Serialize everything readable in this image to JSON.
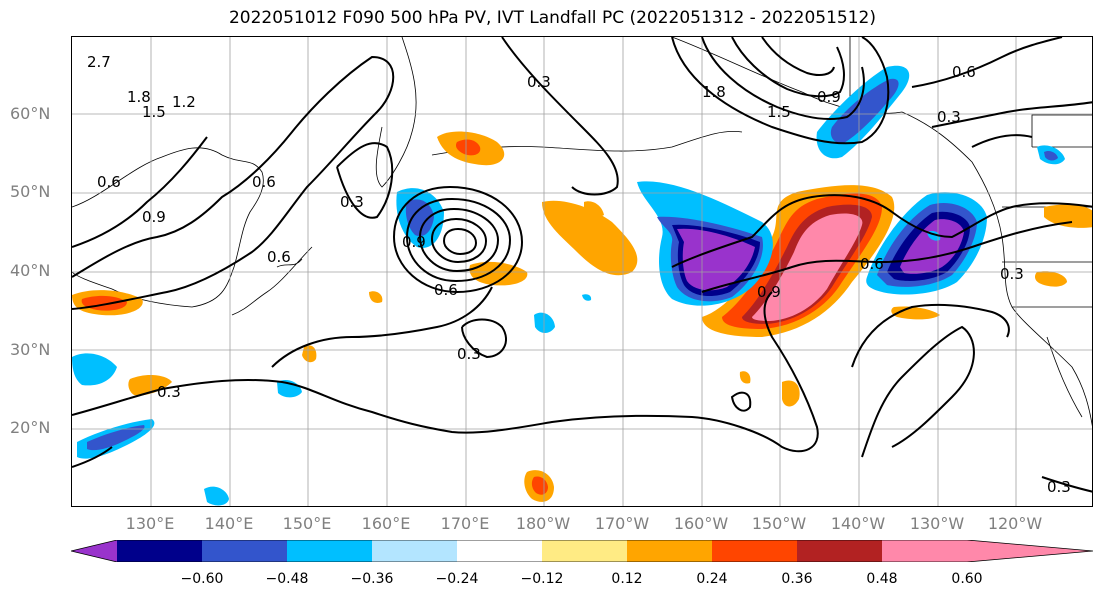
{
  "title": "2022051012 F090 500 hPa PV, IVT Landfall PC (2022051312 - 2022051512)",
  "lat_labels": [
    "60°N",
    "50°N",
    "40°N",
    "30°N",
    "20°N"
  ],
  "lon_labels": [
    "130°E",
    "140°E",
    "150°E",
    "160°E",
    "170°E",
    "180°W",
    "170°W",
    "160°W",
    "150°W",
    "140°W",
    "130°W",
    "120°W"
  ],
  "contour_labels": [
    "0.3",
    "0.6",
    "0.9",
    "0.6",
    "0.3",
    "0.3",
    "0.6",
    "0.9",
    "0.6",
    "0.3",
    "0.9",
    "0.6",
    "0.3",
    "2.7",
    "1.8",
    "1.5",
    "1.2",
    "0.6",
    "0.9",
    "1.8",
    "1.5"
  ],
  "colorbar": {
    "ticks": [
      "−0.60",
      "−0.48",
      "−0.36",
      "−0.24",
      "−0.12",
      "0.12",
      "0.24",
      "0.36",
      "0.48",
      "0.60"
    ],
    "colors": [
      "#9933cc",
      "#00008b",
      "#3355cc",
      "#00bfff",
      "#b3e5ff",
      "#ffffff",
      "#ffeb84",
      "#ffa500",
      "#ff4500",
      "#b22222",
      "#ff88aa"
    ]
  }
}
